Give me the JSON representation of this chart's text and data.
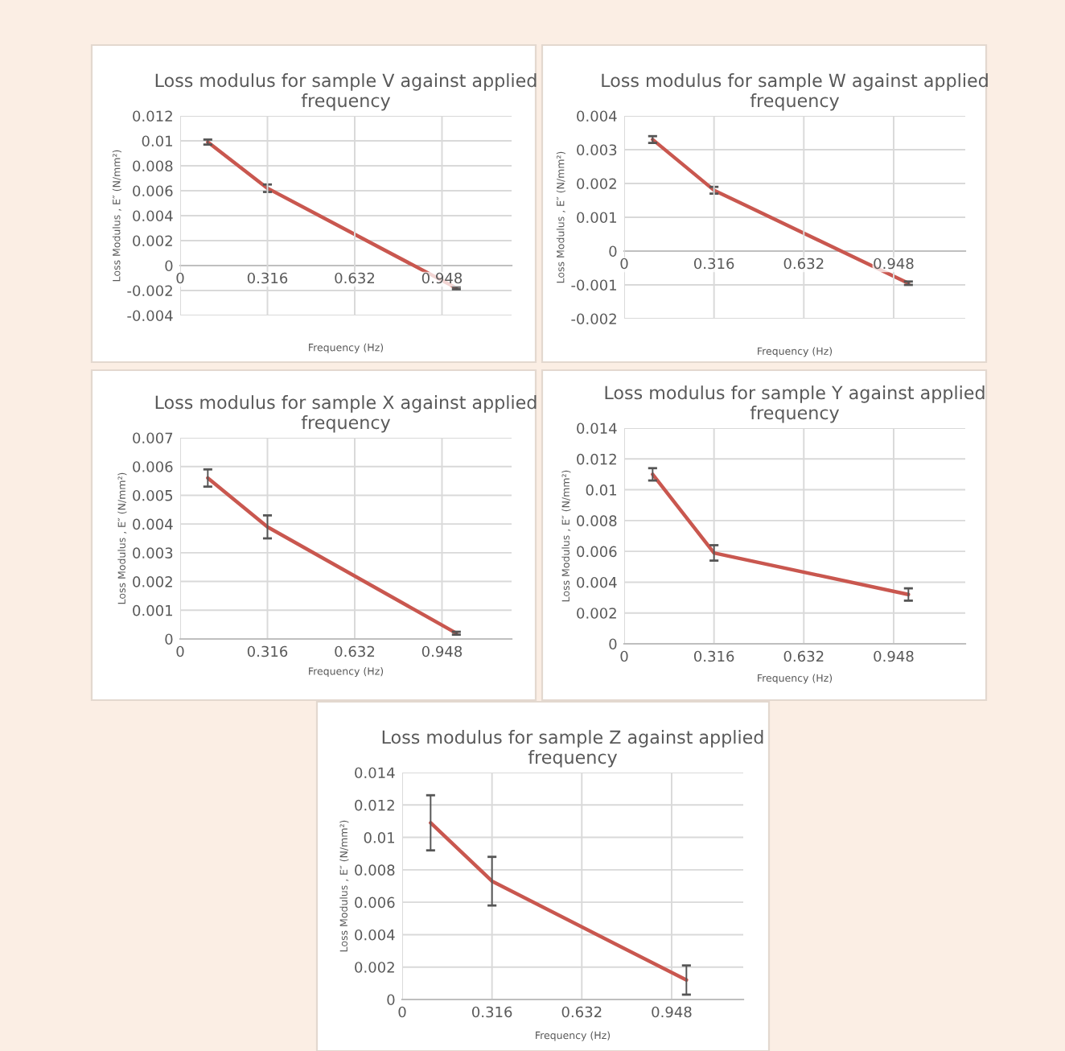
{
  "chart_data": [
    {
      "type": "line",
      "title": "Loss modulus for sample V against applied frequency",
      "xlabel": "Frequency (Hz)",
      "ylabel": "Loss Modulus , E″ (N/mm²)",
      "x": [
        0.1,
        0.316,
        1.0
      ],
      "xlim": [
        0,
        1.2
      ],
      "xticks": [
        0,
        0.316,
        0.632,
        0.948
      ],
      "ylim": [
        -0.004,
        0.012
      ],
      "yticks": [
        -0.004,
        -0.002,
        0,
        0.002,
        0.004,
        0.006,
        0.008,
        0.01,
        0.012
      ],
      "grid": true,
      "series": [
        {
          "color": "#c9574f",
          "values": [
            0.0099,
            0.0062,
            -0.0018
          ],
          "errors": [
            0.0002,
            0.0003,
            0.0001
          ]
        }
      ]
    },
    {
      "type": "line",
      "title": "Loss modulus for sample W against applied frequency",
      "xlabel": "Frequency (Hz)",
      "ylabel": "Loss Modulus , E″ (N/mm²)",
      "x": [
        0.1,
        0.316,
        1.0
      ],
      "xlim": [
        0,
        1.2
      ],
      "xticks": [
        0,
        0.316,
        0.632,
        0.948
      ],
      "ylim": [
        -0.002,
        0.004
      ],
      "yticks": [
        -0.002,
        -0.001,
        0,
        0.001,
        0.002,
        0.003,
        0.004
      ],
      "grid": true,
      "series": [
        {
          "color": "#c9574f",
          "values": [
            0.0033,
            0.0018,
            -0.00095
          ],
          "errors": [
            0.0001,
            0.0001,
            5e-05
          ]
        }
      ]
    },
    {
      "type": "line",
      "title": "Loss modulus for sample X against applied frequency",
      "xlabel": "Frequency (Hz)",
      "ylabel": "Loss Modulus , E″ (N/mm²)",
      "x": [
        0.1,
        0.316,
        1.0
      ],
      "xlim": [
        0,
        1.2
      ],
      "xticks": [
        0,
        0.316,
        0.632,
        0.948
      ],
      "ylim": [
        0,
        0.007
      ],
      "yticks": [
        0,
        0.001,
        0.002,
        0.003,
        0.004,
        0.005,
        0.006,
        0.007
      ],
      "grid": true,
      "series": [
        {
          "color": "#c9574f",
          "values": [
            0.0056,
            0.0039,
            0.0002
          ],
          "errors": [
            0.0003,
            0.0004,
            5e-05
          ]
        }
      ]
    },
    {
      "type": "line",
      "title": "Loss modulus for sample Y against applied frequency",
      "xlabel": "Frequency (Hz)",
      "ylabel": "Loss Modulus , E″ (N/mm²)",
      "x": [
        0.1,
        0.316,
        1.0
      ],
      "xlim": [
        0,
        1.2
      ],
      "xticks": [
        0,
        0.316,
        0.632,
        0.948
      ],
      "ylim": [
        0,
        0.014
      ],
      "yticks": [
        0,
        0.002,
        0.004,
        0.006,
        0.008,
        0.01,
        0.012,
        0.014
      ],
      "grid": true,
      "series": [
        {
          "color": "#c9574f",
          "values": [
            0.011,
            0.0059,
            0.0032
          ],
          "errors": [
            0.0004,
            0.0005,
            0.0004
          ]
        }
      ]
    },
    {
      "type": "line",
      "title": "Loss modulus for sample Z against applied frequency",
      "xlabel": "Frequency (Hz)",
      "ylabel": "Loss Modulus , E″ (N/mm²)",
      "x": [
        0.1,
        0.316,
        1.0
      ],
      "xlim": [
        0,
        1.2
      ],
      "xticks": [
        0,
        0.316,
        0.632,
        0.948
      ],
      "ylim": [
        0,
        0.014
      ],
      "yticks": [
        0,
        0.002,
        0.004,
        0.006,
        0.008,
        0.01,
        0.012,
        0.014
      ],
      "grid": true,
      "series": [
        {
          "color": "#c9574f",
          "values": [
            0.0109,
            0.0073,
            0.0012
          ],
          "errors": [
            0.0017,
            0.0015,
            0.0009
          ]
        }
      ]
    }
  ]
}
